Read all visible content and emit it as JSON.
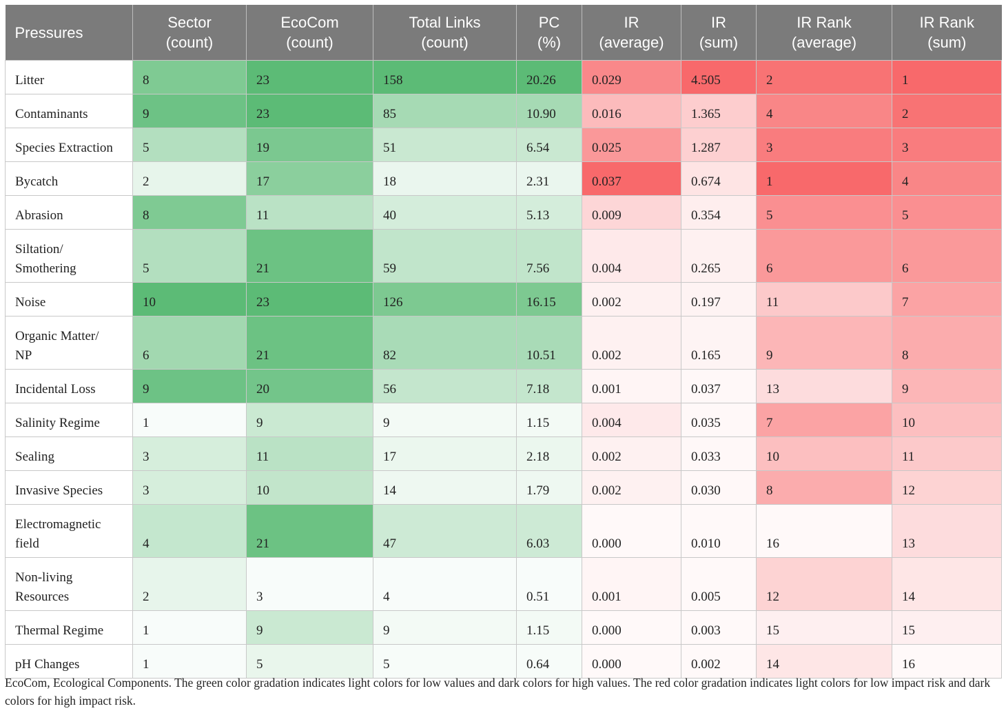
{
  "table": {
    "headers": [
      [
        "Pressures"
      ],
      [
        "Sector",
        "(count)"
      ],
      [
        "EcoCom",
        "(count)"
      ],
      [
        "Total Links",
        "(count)"
      ],
      [
        "PC",
        "(%)"
      ],
      [
        "IR",
        "(average)"
      ],
      [
        "IR",
        "(sum)"
      ],
      [
        "IR Rank",
        "(average)"
      ],
      [
        "IR Rank",
        "(sum)"
      ]
    ],
    "rows": [
      {
        "name": [
          "Litter"
        ],
        "sector": "8",
        "ecocom": "23",
        "links": "158",
        "pc": "20.26",
        "ir_avg": "0.029",
        "ir_sum": "4.505",
        "rank_avg": "2",
        "rank_sum": "1"
      },
      {
        "name": [
          "Contaminants"
        ],
        "sector": "9",
        "ecocom": "23",
        "links": "85",
        "pc": "10.90",
        "ir_avg": "0.016",
        "ir_sum": "1.365",
        "rank_avg": "4",
        "rank_sum": "2"
      },
      {
        "name": [
          "Species Extraction"
        ],
        "sector": "5",
        "ecocom": "19",
        "links": "51",
        "pc": "6.54",
        "ir_avg": "0.025",
        "ir_sum": "1.287",
        "rank_avg": "3",
        "rank_sum": "3"
      },
      {
        "name": [
          "Bycatch"
        ],
        "sector": "2",
        "ecocom": "17",
        "links": "18",
        "pc": "2.31",
        "ir_avg": "0.037",
        "ir_sum": "0.674",
        "rank_avg": "1",
        "rank_sum": "4"
      },
      {
        "name": [
          "Abrasion"
        ],
        "sector": "8",
        "ecocom": "11",
        "links": "40",
        "pc": "5.13",
        "ir_avg": "0.009",
        "ir_sum": "0.354",
        "rank_avg": "5",
        "rank_sum": "5"
      },
      {
        "name": [
          "Siltation/",
          "Smothering"
        ],
        "sector": "5",
        "ecocom": "21",
        "links": "59",
        "pc": "7.56",
        "ir_avg": "0.004",
        "ir_sum": "0.265",
        "rank_avg": "6",
        "rank_sum": "6"
      },
      {
        "name": [
          "Noise"
        ],
        "sector": "10",
        "ecocom": "23",
        "links": "126",
        "pc": "16.15",
        "ir_avg": "0.002",
        "ir_sum": "0.197",
        "rank_avg": "11",
        "rank_sum": "7"
      },
      {
        "name": [
          "Organic Matter/",
          "NP"
        ],
        "sector": "6",
        "ecocom": "21",
        "links": "82",
        "pc": "10.51",
        "ir_avg": "0.002",
        "ir_sum": "0.165",
        "rank_avg": "9",
        "rank_sum": "8"
      },
      {
        "name": [
          "Incidental Loss"
        ],
        "sector": "9",
        "ecocom": "20",
        "links": "56",
        "pc": "7.18",
        "ir_avg": "0.001",
        "ir_sum": "0.037",
        "rank_avg": "13",
        "rank_sum": "9"
      },
      {
        "name": [
          "Salinity Regime"
        ],
        "sector": "1",
        "ecocom": "9",
        "links": "9",
        "pc": "1.15",
        "ir_avg": "0.004",
        "ir_sum": "0.035",
        "rank_avg": "7",
        "rank_sum": "10"
      },
      {
        "name": [
          "Sealing"
        ],
        "sector": "3",
        "ecocom": "11",
        "links": "17",
        "pc": "2.18",
        "ir_avg": "0.002",
        "ir_sum": "0.033",
        "rank_avg": "10",
        "rank_sum": "11"
      },
      {
        "name": [
          "Invasive Species"
        ],
        "sector": "3",
        "ecocom": "10",
        "links": "14",
        "pc": "1.79",
        "ir_avg": "0.002",
        "ir_sum": "0.030",
        "rank_avg": "8",
        "rank_sum": "12"
      },
      {
        "name": [
          "Electromagnetic",
          "field"
        ],
        "sector": "4",
        "ecocom": "21",
        "links": "47",
        "pc": "6.03",
        "ir_avg": "0.000",
        "ir_sum": "0.010",
        "rank_avg": "16",
        "rank_sum": "13"
      },
      {
        "name": [
          "Non-living",
          "Resources"
        ],
        "sector": "2",
        "ecocom": "3",
        "links": "4",
        "pc": "0.51",
        "ir_avg": "0.001",
        "ir_sum": "0.005",
        "rank_avg": "12",
        "rank_sum": "14"
      },
      {
        "name": [
          "Thermal Regime"
        ],
        "sector": "1",
        "ecocom": "9",
        "links": "9",
        "pc": "1.15",
        "ir_avg": "0.000",
        "ir_sum": "0.003",
        "rank_avg": "15",
        "rank_sum": "15"
      },
      {
        "name": [
          "pH Changes"
        ],
        "sector": "1",
        "ecocom": "5",
        "links": "5",
        "pc": "0.64",
        "ir_avg": "0.000",
        "ir_sum": "0.002",
        "rank_avg": "14",
        "rank_sum": "16"
      }
    ]
  },
  "colors": {
    "header_bg": "#7b7b7b",
    "green_high": "#5cbb76",
    "green_low": "#ffffff",
    "red_high": "#f8696b",
    "red_low": "#ffffff"
  },
  "footnote": "EcoCom, Ecological Components. The green color gradation indicates light colors for low values and dark colors for high values. The red color gradation indicates light colors for low impact risk and dark colors for high impact risk."
}
